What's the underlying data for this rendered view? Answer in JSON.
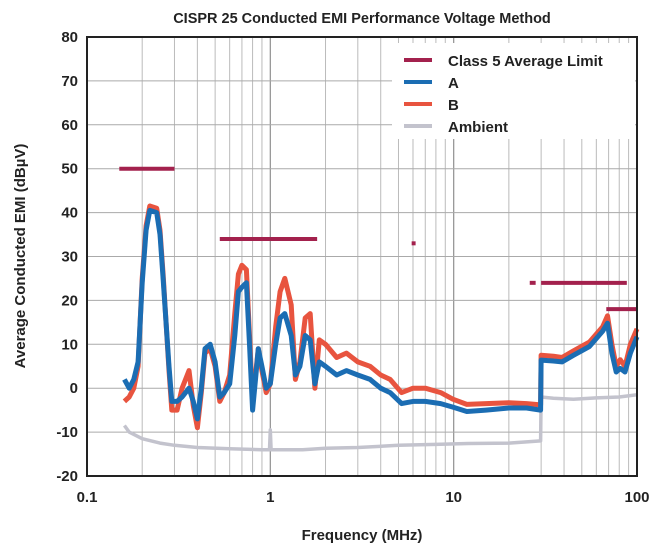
{
  "chart_data": {
    "type": "line",
    "title": "CISPR 25 Conducted EMI Performance Voltage Method",
    "xlabel": "Frequency (MHz)",
    "ylabel": "Average Conducted EMI (dBµV)",
    "xscale": "log",
    "xlim": [
      0.1,
      100
    ],
    "ylim": [
      -20,
      80
    ],
    "xticks": [
      0.1,
      1,
      10,
      100
    ],
    "xtick_labels": [
      "0.1",
      "1",
      "10",
      "100"
    ],
    "yticks": [
      -20,
      -10,
      0,
      10,
      20,
      30,
      40,
      50,
      60,
      70,
      80
    ],
    "ytick_labels": [
      "-20",
      "-10",
      "0",
      "10",
      "20",
      "30",
      "40",
      "50",
      "60",
      "70",
      "80"
    ],
    "grid": true,
    "legend_position": "top-right",
    "limit": {
      "name": "Class 5 Average Limit",
      "color": "#a3214d",
      "segments": [
        {
          "f": [
            0.15,
            0.3
          ],
          "level": 50
        },
        {
          "f": [
            0.53,
            1.8
          ],
          "level": 34
        },
        {
          "f": [
            5.9,
            6.2
          ],
          "level": 33
        },
        {
          "f": [
            26,
            28
          ],
          "level": 24
        },
        {
          "f": [
            30,
            88
          ],
          "level": 24
        },
        {
          "f": [
            68,
            108
          ],
          "level": 18
        }
      ]
    },
    "series": [
      {
        "name": "A",
        "color": "#1b6db3",
        "points": [
          [
            0.16,
            2
          ],
          [
            0.17,
            0
          ],
          [
            0.18,
            2
          ],
          [
            0.19,
            6
          ],
          [
            0.2,
            24
          ],
          [
            0.21,
            36
          ],
          [
            0.22,
            40.5
          ],
          [
            0.24,
            40
          ],
          [
            0.25,
            35
          ],
          [
            0.26,
            25
          ],
          [
            0.28,
            5
          ],
          [
            0.29,
            -3
          ],
          [
            0.31,
            -3
          ],
          [
            0.33,
            -2
          ],
          [
            0.36,
            0
          ],
          [
            0.38,
            -3
          ],
          [
            0.4,
            -7
          ],
          [
            0.42,
            0
          ],
          [
            0.44,
            9
          ],
          [
            0.47,
            10
          ],
          [
            0.5,
            6
          ],
          [
            0.53,
            -2
          ],
          [
            0.56,
            -1
          ],
          [
            0.6,
            1
          ],
          [
            0.64,
            12
          ],
          [
            0.67,
            22
          ],
          [
            0.7,
            23
          ],
          [
            0.74,
            24
          ],
          [
            0.77,
            10
          ],
          [
            0.8,
            -5
          ],
          [
            0.83,
            2
          ],
          [
            0.86,
            9
          ],
          [
            0.9,
            5
          ],
          [
            0.95,
            0
          ],
          [
            1.0,
            1
          ],
          [
            1.07,
            10
          ],
          [
            1.13,
            16
          ],
          [
            1.2,
            17
          ],
          [
            1.3,
            12
          ],
          [
            1.37,
            3
          ],
          [
            1.45,
            5
          ],
          [
            1.55,
            12
          ],
          [
            1.65,
            11
          ],
          [
            1.75,
            1
          ],
          [
            1.85,
            6
          ],
          [
            2.0,
            5
          ],
          [
            2.3,
            3
          ],
          [
            2.6,
            4
          ],
          [
            3.0,
            3
          ],
          [
            3.5,
            2
          ],
          [
            4.0,
            0
          ],
          [
            4.5,
            -1
          ],
          [
            5.2,
            -3.5
          ],
          [
            6.0,
            -3
          ],
          [
            7.0,
            -3
          ],
          [
            8.5,
            -3.5
          ],
          [
            9.9,
            -4.3
          ],
          [
            11.8,
            -5.3
          ],
          [
            15,
            -5
          ],
          [
            20,
            -4.5
          ],
          [
            25,
            -4.5
          ],
          [
            29.8,
            -5
          ],
          [
            30,
            6.4
          ],
          [
            35,
            6.2
          ],
          [
            39,
            6
          ],
          [
            45,
            7.5
          ],
          [
            55,
            9.5
          ],
          [
            65,
            13
          ],
          [
            69,
            14.8
          ],
          [
            73,
            8
          ],
          [
            77,
            3.7
          ],
          [
            81,
            4.5
          ],
          [
            86,
            3.7
          ],
          [
            92,
            8
          ],
          [
            100,
            11.7
          ]
        ]
      },
      {
        "name": "B",
        "color": "#e8543f",
        "points": [
          [
            0.16,
            -3
          ],
          [
            0.17,
            -2
          ],
          [
            0.18,
            0
          ],
          [
            0.19,
            5
          ],
          [
            0.2,
            25
          ],
          [
            0.21,
            37
          ],
          [
            0.22,
            41.5
          ],
          [
            0.24,
            41
          ],
          [
            0.25,
            36
          ],
          [
            0.26,
            26
          ],
          [
            0.28,
            4
          ],
          [
            0.29,
            -5
          ],
          [
            0.31,
            -5
          ],
          [
            0.33,
            0
          ],
          [
            0.36,
            4
          ],
          [
            0.38,
            -4
          ],
          [
            0.4,
            -9
          ],
          [
            0.42,
            -1
          ],
          [
            0.44,
            8
          ],
          [
            0.47,
            9
          ],
          [
            0.5,
            5
          ],
          [
            0.53,
            -3
          ],
          [
            0.56,
            -1
          ],
          [
            0.6,
            3
          ],
          [
            0.64,
            17
          ],
          [
            0.67,
            26
          ],
          [
            0.7,
            28
          ],
          [
            0.74,
            27
          ],
          [
            0.77,
            12
          ],
          [
            0.8,
            -3
          ],
          [
            0.83,
            3
          ],
          [
            0.86,
            9
          ],
          [
            0.9,
            4
          ],
          [
            0.95,
            -1
          ],
          [
            1.0,
            1
          ],
          [
            1.07,
            14
          ],
          [
            1.13,
            22
          ],
          [
            1.2,
            25
          ],
          [
            1.3,
            19
          ],
          [
            1.37,
            2
          ],
          [
            1.45,
            6
          ],
          [
            1.55,
            16
          ],
          [
            1.65,
            17
          ],
          [
            1.75,
            0
          ],
          [
            1.85,
            11
          ],
          [
            2.0,
            10
          ],
          [
            2.3,
            7
          ],
          [
            2.6,
            8
          ],
          [
            3.0,
            6
          ],
          [
            3.5,
            5
          ],
          [
            4.0,
            3
          ],
          [
            4.5,
            2
          ],
          [
            5.2,
            -1
          ],
          [
            6.0,
            0
          ],
          [
            7.0,
            0
          ],
          [
            8.5,
            -1
          ],
          [
            9.9,
            -2.5
          ],
          [
            11.8,
            -3.7
          ],
          [
            15,
            -3.5
          ],
          [
            20,
            -3.3
          ],
          [
            25,
            -3.5
          ],
          [
            29.8,
            -3.8
          ],
          [
            30,
            7.5
          ],
          [
            35,
            7.3
          ],
          [
            39,
            7
          ],
          [
            45,
            8.5
          ],
          [
            55,
            10.5
          ],
          [
            65,
            14
          ],
          [
            69,
            16.5
          ],
          [
            73,
            10
          ],
          [
            77,
            5
          ],
          [
            81,
            6.5
          ],
          [
            86,
            5
          ],
          [
            92,
            10
          ],
          [
            100,
            13.5
          ]
        ]
      },
      {
        "name": "Ambient",
        "color": "#c3c3cd",
        "points": [
          [
            0.16,
            -8.5
          ],
          [
            0.17,
            -10
          ],
          [
            0.2,
            -11.5
          ],
          [
            0.25,
            -12.5
          ],
          [
            0.3,
            -13
          ],
          [
            0.4,
            -13.5
          ],
          [
            0.6,
            -13.8
          ],
          [
            0.9,
            -14
          ],
          [
            0.99,
            -14
          ],
          [
            1.0,
            -9.5
          ],
          [
            1.01,
            -14
          ],
          [
            1.5,
            -14
          ],
          [
            2.0,
            -13.7
          ],
          [
            3.0,
            -13.5
          ],
          [
            5.0,
            -13
          ],
          [
            8.0,
            -12.8
          ],
          [
            12,
            -12.6
          ],
          [
            20,
            -12.5
          ],
          [
            29.8,
            -12
          ],
          [
            30,
            -2
          ],
          [
            35,
            -2.3
          ],
          [
            45,
            -2.5
          ],
          [
            60,
            -2.2
          ],
          [
            80,
            -2
          ],
          [
            100,
            -1.5
          ]
        ]
      }
    ]
  }
}
